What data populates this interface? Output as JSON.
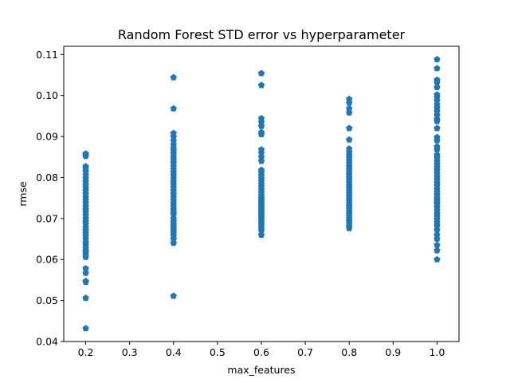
{
  "chart_data": {
    "type": "scatter",
    "title": "Random Forest STD error vs hyperparameter",
    "xlabel": "max_features",
    "ylabel": "rmse",
    "xlim": [
      0.15,
      1.05
    ],
    "ylim": [
      0.04,
      0.112
    ],
    "xticks": [
      0.2,
      0.3,
      0.4,
      0.5,
      0.6,
      0.7,
      0.8,
      0.9,
      1.0
    ],
    "xtick_labels": [
      "0.2",
      "0.3",
      "0.4",
      "0.5",
      "0.6",
      "0.7",
      "0.8",
      "0.9",
      "1.0"
    ],
    "yticks": [
      0.04,
      0.05,
      0.06,
      0.07,
      0.08,
      0.09,
      0.1,
      0.11
    ],
    "ytick_labels": [
      "0.04",
      "0.05",
      "0.06",
      "0.07",
      "0.08",
      "0.09",
      "0.10",
      "0.11"
    ],
    "grid": false,
    "marker": "pentagon",
    "color": "#1f77b4",
    "series": [
      {
        "x": [
          0.2,
          0.2,
          0.2,
          0.2,
          0.2,
          0.2,
          0.2,
          0.2,
          0.2,
          0.2,
          0.2,
          0.2,
          0.2,
          0.2,
          0.2,
          0.2,
          0.2,
          0.2,
          0.2,
          0.2,
          0.2,
          0.2,
          0.2,
          0.2,
          0.2,
          0.2,
          0.2,
          0.2,
          0.2,
          0.2,
          0.2,
          0.2,
          0.2,
          0.2,
          0.2,
          0.2,
          0.2,
          0.2,
          0.2,
          0.2,
          0.2
        ],
        "y": [
          0.0858,
          0.0855,
          0.0852,
          0.0827,
          0.0822,
          0.0815,
          0.0806,
          0.0798,
          0.079,
          0.0782,
          0.0775,
          0.0768,
          0.076,
          0.0752,
          0.0745,
          0.0738,
          0.073,
          0.0722,
          0.0715,
          0.0708,
          0.07,
          0.0693,
          0.0686,
          0.0678,
          0.0671,
          0.0664,
          0.0657,
          0.065,
          0.0642,
          0.0635,
          0.0628,
          0.0622,
          0.0617,
          0.0612,
          0.0606,
          0.0578,
          0.0567,
          0.0547,
          0.0545,
          0.0506,
          0.0432
        ]
      },
      {
        "x": [
          0.4,
          0.4,
          0.4,
          0.4,
          0.4,
          0.4,
          0.4,
          0.4,
          0.4,
          0.4,
          0.4,
          0.4,
          0.4,
          0.4,
          0.4,
          0.4,
          0.4,
          0.4,
          0.4,
          0.4,
          0.4,
          0.4,
          0.4,
          0.4,
          0.4,
          0.4,
          0.4,
          0.4,
          0.4,
          0.4,
          0.4,
          0.4,
          0.4,
          0.4,
          0.4,
          0.4,
          0.4,
          0.4,
          0.4,
          0.4
        ],
        "y": [
          0.1044,
          0.0968,
          0.0908,
          0.09,
          0.089,
          0.088,
          0.0872,
          0.0865,
          0.0858,
          0.085,
          0.0843,
          0.0836,
          0.0828,
          0.082,
          0.0813,
          0.0806,
          0.0798,
          0.079,
          0.0783,
          0.0776,
          0.0768,
          0.076,
          0.0752,
          0.0744,
          0.0737,
          0.073,
          0.0722,
          0.0715,
          0.071,
          0.07,
          0.0693,
          0.0686,
          0.068,
          0.0675,
          0.067,
          0.0665,
          0.0658,
          0.065,
          0.064,
          0.0511
        ]
      },
      {
        "x": [
          0.6,
          0.6,
          0.6,
          0.6,
          0.6,
          0.6,
          0.6,
          0.6,
          0.6,
          0.6,
          0.6,
          0.6,
          0.6,
          0.6,
          0.6,
          0.6,
          0.6,
          0.6,
          0.6,
          0.6,
          0.6,
          0.6,
          0.6,
          0.6,
          0.6,
          0.6,
          0.6,
          0.6,
          0.6,
          0.6,
          0.6,
          0.6,
          0.6,
          0.6,
          0.6,
          0.6,
          0.6,
          0.6
        ],
        "y": [
          0.1054,
          0.1025,
          0.0944,
          0.0935,
          0.0925,
          0.091,
          0.0905,
          0.0868,
          0.086,
          0.085,
          0.084,
          0.0818,
          0.0812,
          0.0805,
          0.0798,
          0.0791,
          0.0784,
          0.0777,
          0.077,
          0.0763,
          0.0756,
          0.075,
          0.0745,
          0.074,
          0.0735,
          0.073,
          0.0725,
          0.072,
          0.0715,
          0.071,
          0.0705,
          0.07,
          0.0694,
          0.0688,
          0.0682,
          0.0676,
          0.067,
          0.066
        ]
      },
      {
        "x": [
          0.8,
          0.8,
          0.8,
          0.8,
          0.8,
          0.8,
          0.8,
          0.8,
          0.8,
          0.8,
          0.8,
          0.8,
          0.8,
          0.8,
          0.8,
          0.8,
          0.8,
          0.8,
          0.8,
          0.8,
          0.8,
          0.8,
          0.8,
          0.8,
          0.8,
          0.8,
          0.8,
          0.8,
          0.8,
          0.8,
          0.8,
          0.8,
          0.8,
          0.8,
          0.8,
          0.8,
          0.8
        ],
        "y": [
          0.0991,
          0.0982,
          0.0968,
          0.0958,
          0.092,
          0.0892,
          0.087,
          0.0862,
          0.0855,
          0.0848,
          0.0841,
          0.0834,
          0.0827,
          0.082,
          0.0814,
          0.0807,
          0.08,
          0.0794,
          0.0787,
          0.078,
          0.0774,
          0.0767,
          0.076,
          0.0754,
          0.0748,
          0.0742,
          0.0736,
          0.073,
          0.0724,
          0.0718,
          0.0712,
          0.0706,
          0.07,
          0.0694,
          0.0688,
          0.0681,
          0.0676
        ]
      },
      {
        "x": [
          1.0,
          1.0,
          1.0,
          1.0,
          1.0,
          1.0,
          1.0,
          1.0,
          1.0,
          1.0,
          1.0,
          1.0,
          1.0,
          1.0,
          1.0,
          1.0,
          1.0,
          1.0,
          1.0,
          1.0,
          1.0,
          1.0,
          1.0,
          1.0,
          1.0,
          1.0,
          1.0,
          1.0,
          1.0,
          1.0,
          1.0,
          1.0,
          1.0,
          1.0,
          1.0,
          1.0,
          1.0,
          1.0,
          1.0,
          1.0,
          1.0,
          1.0,
          1.0,
          1.0,
          1.0,
          1.0,
          1.0,
          1.0,
          1.0,
          1.0
        ],
        "y": [
          0.1088,
          0.1066,
          0.1038,
          0.1032,
          0.102,
          0.1002,
          0.0996,
          0.0988,
          0.0978,
          0.097,
          0.0962,
          0.0952,
          0.0942,
          0.0937,
          0.092,
          0.0898,
          0.089,
          0.0875,
          0.0868,
          0.0855,
          0.0848,
          0.084,
          0.0832,
          0.0825,
          0.0818,
          0.081,
          0.0802,
          0.0795,
          0.0787,
          0.078,
          0.0772,
          0.0765,
          0.0758,
          0.075,
          0.0745,
          0.074,
          0.0735,
          0.0728,
          0.072,
          0.0712,
          0.0705,
          0.0698,
          0.069,
          0.0682,
          0.0672,
          0.066,
          0.065,
          0.0635,
          0.0622,
          0.06
        ]
      }
    ]
  }
}
